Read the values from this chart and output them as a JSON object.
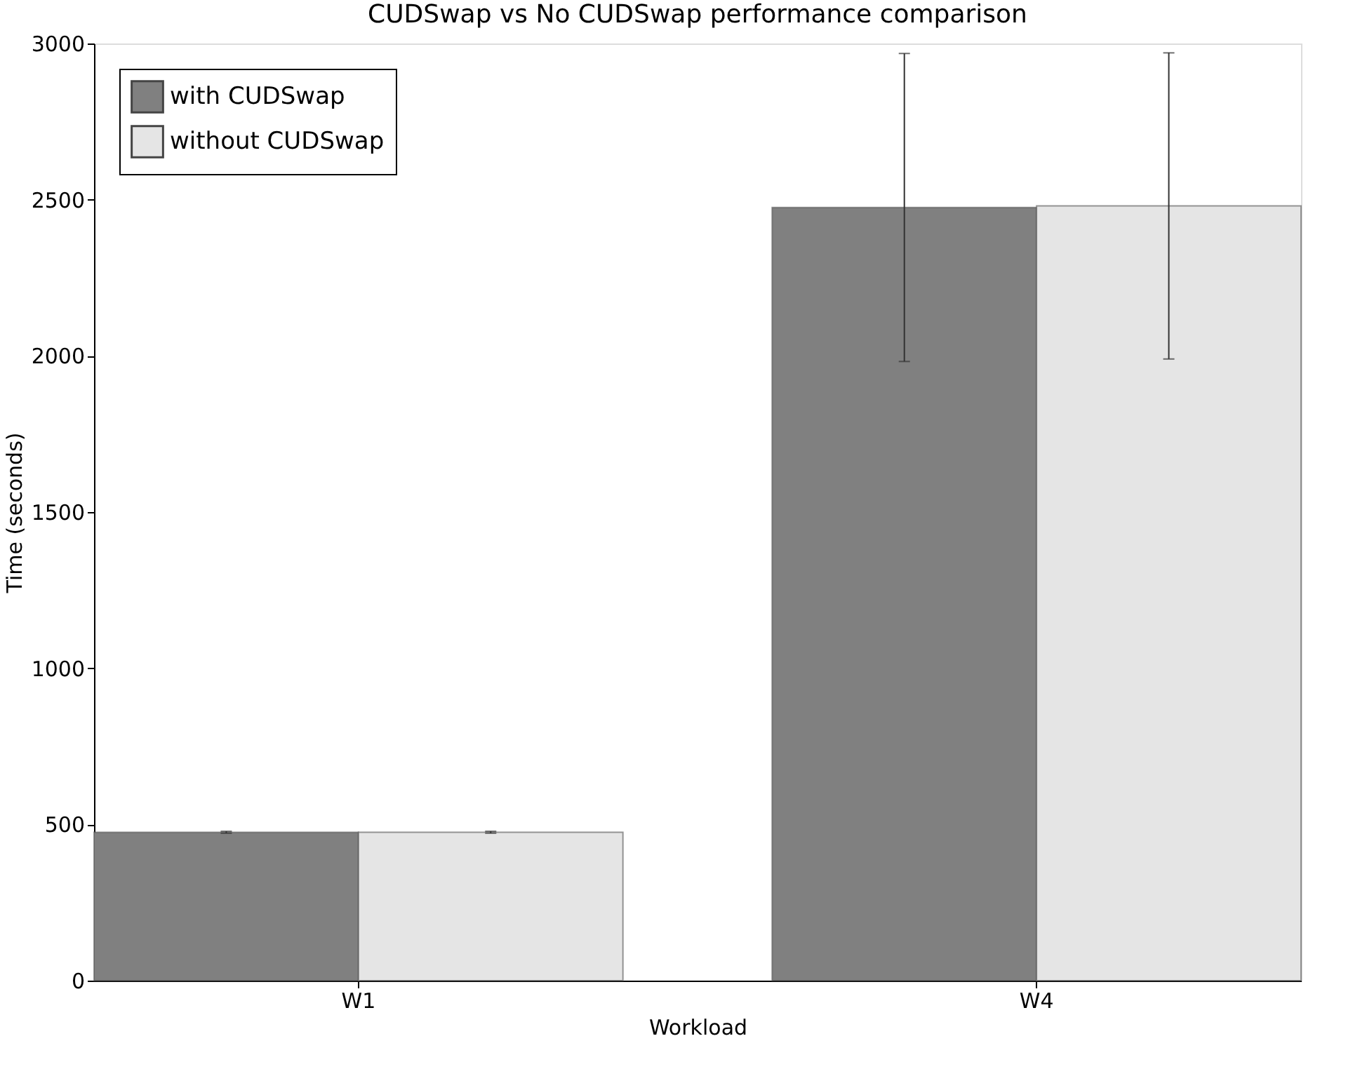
{
  "chart_data": {
    "type": "bar",
    "title": "CUDSwap vs No CUDSwap performance comparison",
    "xlabel": "Workload",
    "ylabel": "Time (seconds)",
    "categories": [
      "W1",
      "W4"
    ],
    "series": [
      {
        "name": "with CUDSwap",
        "color": "#808080",
        "values": [
          475,
          2475
        ],
        "errors": [
          3,
          493
        ]
      },
      {
        "name": "without CUDSwap",
        "color": "#e5e5e5",
        "values": [
          475,
          2480
        ],
        "errors": [
          3,
          490
        ]
      }
    ],
    "ylim": [
      0,
      3000
    ],
    "yticks": [
      0,
      500,
      1000,
      1500,
      2000,
      2500,
      3000
    ],
    "grid": false,
    "legend": "top left"
  }
}
